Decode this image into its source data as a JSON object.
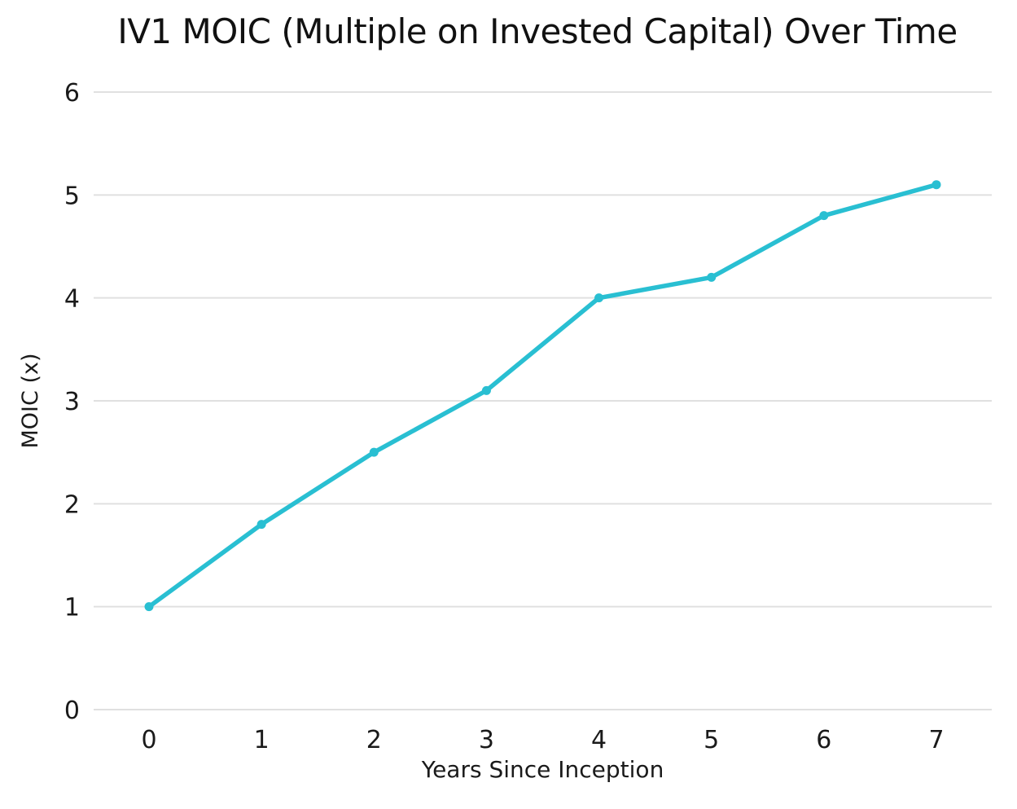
{
  "chart_data": {
    "type": "line",
    "title": "IV1 MOIC (Multiple on Invested Capital) Over Time",
    "xlabel": "Years Since Inception",
    "ylabel": "MOIC (x)",
    "x": [
      0,
      1,
      2,
      3,
      4,
      5,
      6,
      7
    ],
    "values": [
      1.0,
      1.8,
      2.5,
      3.1,
      4.0,
      4.2,
      4.8,
      5.1
    ],
    "x_tick_labels": [
      "0",
      "1",
      "2",
      "3",
      "4",
      "5",
      "6",
      "7"
    ],
    "y_ticks": [
      0,
      1,
      2,
      3,
      4,
      5,
      6
    ],
    "y_tick_labels": [
      "0",
      "1",
      "2",
      "3",
      "4",
      "5",
      "6"
    ],
    "ylim": [
      0,
      6
    ],
    "grid": "horizontal",
    "legend": "none",
    "line_color": "#29BFD2",
    "marker_color": "#29BFD2",
    "grid_color": "#E0E0E0",
    "text_color": "#1A1A1A",
    "background_color": "#FFFFFF"
  }
}
